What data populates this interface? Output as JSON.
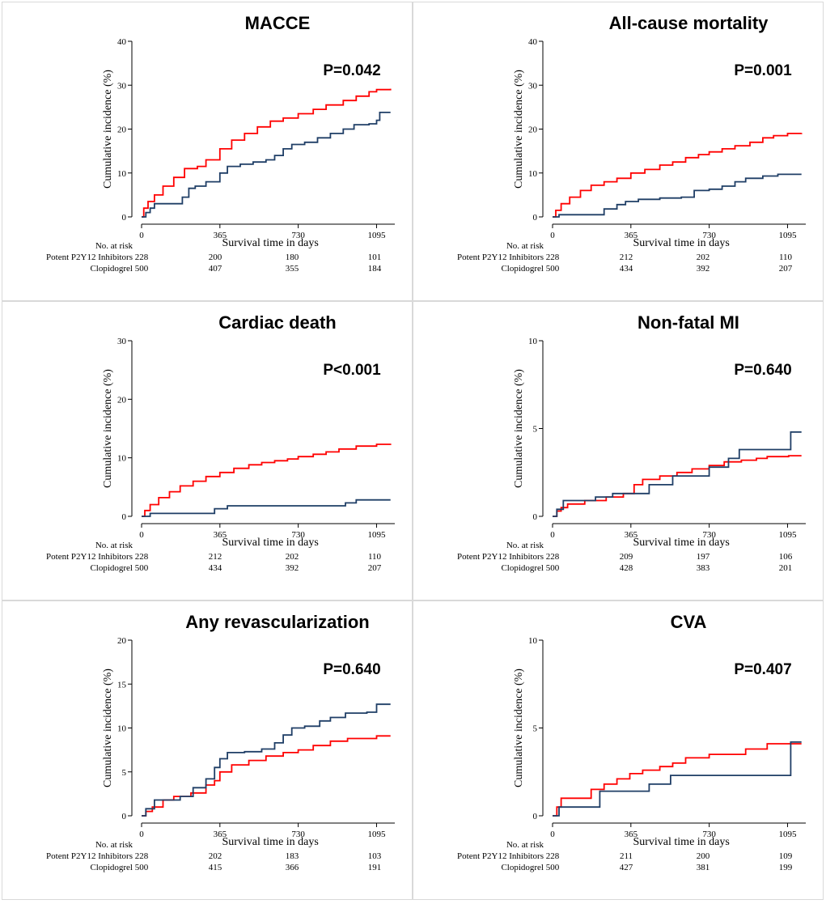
{
  "colors": {
    "potent": "#ff0000",
    "clopidogrel": "#1f3e66"
  },
  "chart_data": [
    {
      "type": "line",
      "title": "MACCE",
      "p_value": "P=0.042",
      "xlabel": "Survival time in days",
      "ylabel": "Cumulative incidence (%)",
      "x_ticks": [
        0,
        365,
        730,
        1095
      ],
      "x_tick_labels": [
        "0",
        "365",
        "730",
        "1095"
      ],
      "xlim": [
        0,
        1180
      ],
      "y_ticks": [
        0,
        10,
        20,
        30,
        40
      ],
      "y_tick_labels": [
        "0",
        "10",
        "20",
        "30",
        "40"
      ],
      "ylim": [
        0,
        40
      ],
      "series": [
        {
          "name": "Potent P2Y12 Inhibitors",
          "color": "#ff0000",
          "x": [
            0,
            10,
            30,
            60,
            100,
            150,
            200,
            230,
            260,
            300,
            365,
            420,
            480,
            540,
            600,
            660,
            730,
            800,
            860,
            940,
            1000,
            1060,
            1095,
            1160
          ],
          "y": [
            0,
            2,
            3.5,
            5,
            7,
            9,
            11,
            11,
            11.5,
            13,
            15.5,
            17.5,
            19,
            20.5,
            21.8,
            22.5,
            23.5,
            24.5,
            25.5,
            26.5,
            27.5,
            28.5,
            29,
            29.2
          ]
        },
        {
          "name": "Clopidogrel",
          "color": "#1f3e66",
          "x": [
            0,
            20,
            40,
            60,
            150,
            190,
            220,
            250,
            300,
            365,
            400,
            460,
            520,
            580,
            620,
            660,
            700,
            760,
            820,
            880,
            940,
            990,
            1060,
            1095,
            1110,
            1160
          ],
          "y": [
            0,
            1,
            2,
            3,
            3,
            4.5,
            6.5,
            7,
            8,
            10,
            11.5,
            12,
            12.5,
            13,
            14,
            15.5,
            16.5,
            17,
            18,
            19,
            20,
            21,
            21.2,
            22,
            23.8,
            23.8
          ]
        }
      ],
      "risk_table": {
        "header": "No. at risk",
        "rows": [
          {
            "label": "Potent P2Y12 Inhibitors",
            "values": [
              "228",
              "200",
              "180",
              "101"
            ]
          },
          {
            "label": "Clopidogrel",
            "values": [
              "500",
              "407",
              "355",
              "184"
            ]
          }
        ]
      }
    },
    {
      "type": "line",
      "title": "All-cause mortality",
      "p_value": "P=0.001",
      "xlabel": "Survival time in days",
      "ylabel": "Cumulative incidence (%)",
      "x_ticks": [
        0,
        365,
        730,
        1095
      ],
      "x_tick_labels": [
        "0",
        "365",
        "730",
        "1095"
      ],
      "xlim": [
        0,
        1180
      ],
      "y_ticks": [
        0,
        10,
        20,
        30,
        40
      ],
      "y_tick_labels": [
        "0",
        "10",
        "20",
        "30",
        "40"
      ],
      "ylim": [
        0,
        40
      ],
      "series": [
        {
          "name": "Potent P2Y12 Inhibitors",
          "color": "#ff0000",
          "x": [
            0,
            15,
            40,
            80,
            130,
            180,
            240,
            300,
            365,
            430,
            500,
            560,
            620,
            680,
            730,
            790,
            850,
            920,
            980,
            1030,
            1095,
            1160
          ],
          "y": [
            0,
            1.5,
            3,
            4.5,
            6,
            7.2,
            8,
            8.8,
            10,
            10.8,
            11.8,
            12.5,
            13.5,
            14.2,
            14.8,
            15.5,
            16.2,
            17,
            18,
            18.5,
            19,
            19.1
          ]
        },
        {
          "name": "Clopidogrel",
          "color": "#1f3e66",
          "x": [
            0,
            30,
            200,
            240,
            300,
            340,
            400,
            500,
            600,
            660,
            730,
            790,
            850,
            900,
            980,
            1050,
            1160
          ],
          "y": [
            0,
            0.5,
            0.5,
            1.8,
            2.8,
            3.5,
            4,
            4.3,
            4.5,
            6,
            6.3,
            7,
            8,
            8.8,
            9.3,
            9.7,
            9.7
          ]
        }
      ],
      "risk_table": {
        "header": "No. at risk",
        "rows": [
          {
            "label": "Potent P2Y12 Inhibitors",
            "values": [
              "228",
              "212",
              "202",
              "110"
            ]
          },
          {
            "label": "Clopidogrel",
            "values": [
              "500",
              "434",
              "392",
              "207"
            ]
          }
        ]
      }
    },
    {
      "type": "line",
      "title": "Cardiac death",
      "p_value": "P<0.001",
      "xlabel": "Survival time in days",
      "ylabel": "Cumulative incidence (%)",
      "x_ticks": [
        0,
        365,
        730,
        1095
      ],
      "x_tick_labels": [
        "0",
        "365",
        "730",
        "1095"
      ],
      "xlim": [
        0,
        1180
      ],
      "y_ticks": [
        0,
        10,
        20,
        30
      ],
      "y_tick_labels": [
        "0",
        "10",
        "20",
        "30"
      ],
      "ylim": [
        0,
        30
      ],
      "series": [
        {
          "name": "Potent P2Y12 Inhibitors",
          "color": "#ff0000",
          "x": [
            0,
            15,
            40,
            80,
            130,
            180,
            240,
            300,
            365,
            430,
            500,
            560,
            620,
            680,
            730,
            800,
            860,
            920,
            1000,
            1095,
            1160
          ],
          "y": [
            0,
            1,
            2,
            3.2,
            4.2,
            5.2,
            6,
            6.8,
            7.5,
            8.2,
            8.8,
            9.2,
            9.5,
            9.8,
            10.2,
            10.6,
            11,
            11.5,
            12,
            12.3,
            12.4
          ]
        },
        {
          "name": "Clopidogrel",
          "color": "#1f3e66",
          "x": [
            0,
            40,
            300,
            340,
            400,
            500,
            600,
            700,
            800,
            900,
            950,
            1000,
            1100,
            1160
          ],
          "y": [
            0,
            0.5,
            0.5,
            1.3,
            1.8,
            1.8,
            1.8,
            1.8,
            1.8,
            1.8,
            2.3,
            2.8,
            2.8,
            2.8
          ]
        }
      ],
      "risk_table": {
        "header": "No. at risk",
        "rows": [
          {
            "label": "Potent P2Y12 Inhibitors",
            "values": [
              "228",
              "212",
              "202",
              "110"
            ]
          },
          {
            "label": "Clopidogrel",
            "values": [
              "500",
              "434",
              "392",
              "207"
            ]
          }
        ]
      }
    },
    {
      "type": "line",
      "title": "Non-fatal MI",
      "p_value": "P=0.640",
      "xlabel": "Survival time in days",
      "ylabel": "Cumulative incidence (%)",
      "x_ticks": [
        0,
        365,
        730,
        1095
      ],
      "x_tick_labels": [
        "0",
        "365",
        "730",
        "1095"
      ],
      "xlim": [
        0,
        1180
      ],
      "y_ticks": [
        0,
        5,
        10
      ],
      "y_tick_labels": [
        "0",
        "5",
        "10"
      ],
      "ylim": [
        0,
        10
      ],
      "series": [
        {
          "name": "Potent P2Y12 Inhibitors",
          "color": "#ff0000",
          "x": [
            0,
            20,
            40,
            70,
            150,
            250,
            330,
            380,
            420,
            500,
            580,
            650,
            730,
            800,
            880,
            950,
            1000,
            1100,
            1160
          ],
          "y": [
            0,
            0.3,
            0.5,
            0.7,
            0.9,
            1.1,
            1.3,
            1.8,
            2.1,
            2.3,
            2.5,
            2.7,
            2.9,
            3.1,
            3.2,
            3.3,
            3.4,
            3.45,
            3.45
          ]
        },
        {
          "name": "Clopidogrel",
          "color": "#1f3e66",
          "x": [
            0,
            20,
            50,
            100,
            200,
            280,
            350,
            450,
            560,
            650,
            730,
            820,
            870,
            1000,
            1095,
            1110,
            1160
          ],
          "y": [
            0,
            0.4,
            0.9,
            0.9,
            1.1,
            1.3,
            1.3,
            1.8,
            2.3,
            2.3,
            2.8,
            3.3,
            3.8,
            3.8,
            3.8,
            4.8,
            4.8
          ]
        }
      ],
      "risk_table": {
        "header": "No. at risk",
        "rows": [
          {
            "label": "Potent P2Y12 Inhibitors",
            "values": [
              "228",
              "209",
              "197",
              "106"
            ]
          },
          {
            "label": "Clopidogrel",
            "values": [
              "500",
              "428",
              "383",
              "201"
            ]
          }
        ]
      }
    },
    {
      "type": "line",
      "title": "Any revascularization",
      "p_value": "P=0.640",
      "xlabel": "Survival time in days",
      "ylabel": "Cumulative incidence (%)",
      "x_ticks": [
        0,
        365,
        730,
        1095
      ],
      "x_tick_labels": [
        "0",
        "365",
        "730",
        "1095"
      ],
      "xlim": [
        0,
        1180
      ],
      "y_ticks": [
        0,
        5,
        10,
        15,
        20
      ],
      "y_tick_labels": [
        "0",
        "5",
        "10",
        "15",
        "20"
      ],
      "ylim": [
        0,
        20
      ],
      "series": [
        {
          "name": "Potent P2Y12 Inhibitors",
          "color": "#ff0000",
          "x": [
            0,
            20,
            50,
            100,
            150,
            230,
            300,
            340,
            365,
            420,
            500,
            580,
            660,
            730,
            800,
            880,
            960,
            1095,
            1160
          ],
          "y": [
            0,
            0.5,
            1,
            1.8,
            2.2,
            2.6,
            3.5,
            4,
            5,
            5.8,
            6.3,
            6.8,
            7.2,
            7.5,
            8,
            8.5,
            8.8,
            9.1,
            9.1
          ]
        },
        {
          "name": "Clopidogrel",
          "color": "#1f3e66",
          "x": [
            0,
            20,
            60,
            100,
            180,
            240,
            300,
            340,
            365,
            400,
            480,
            560,
            620,
            660,
            700,
            760,
            830,
            880,
            950,
            1050,
            1095,
            1160
          ],
          "y": [
            0,
            0.8,
            1.8,
            1.8,
            2.2,
            3.2,
            4.2,
            5.5,
            6.5,
            7.2,
            7.3,
            7.6,
            8.3,
            9.2,
            10,
            10.2,
            10.8,
            11.2,
            11.7,
            11.8,
            12.7,
            12.7
          ]
        }
      ],
      "risk_table": {
        "header": "No. at risk",
        "rows": [
          {
            "label": "Potent P2Y12 Inhibitors",
            "values": [
              "228",
              "202",
              "183",
              "103"
            ]
          },
          {
            "label": "Clopidogrel",
            "values": [
              "500",
              "415",
              "366",
              "191"
            ]
          }
        ]
      }
    },
    {
      "type": "line",
      "title": "CVA",
      "p_value": "P=0.407",
      "xlabel": "Survival time in days",
      "ylabel": "Cumulative incidence (%)",
      "x_ticks": [
        0,
        365,
        730,
        1095
      ],
      "x_tick_labels": [
        "0",
        "365",
        "730",
        "1095"
      ],
      "xlim": [
        0,
        1180
      ],
      "y_ticks": [
        0,
        5,
        10
      ],
      "y_tick_labels": [
        "0",
        "5",
        "10"
      ],
      "ylim": [
        0,
        10
      ],
      "series": [
        {
          "name": "Potent P2Y12 Inhibitors",
          "color": "#ff0000",
          "x": [
            0,
            20,
            40,
            100,
            180,
            240,
            300,
            360,
            420,
            500,
            560,
            620,
            730,
            800,
            900,
            1000,
            1095,
            1160
          ],
          "y": [
            0,
            0.5,
            1,
            1,
            1.5,
            1.8,
            2.1,
            2.4,
            2.6,
            2.8,
            3,
            3.3,
            3.5,
            3.5,
            3.8,
            4.1,
            4.1,
            4.1
          ]
        },
        {
          "name": "Clopidogrel",
          "color": "#1f3e66",
          "x": [
            0,
            30,
            200,
            220,
            400,
            450,
            550,
            650,
            800,
            900,
            1095,
            1110,
            1160
          ],
          "y": [
            0,
            0.5,
            0.5,
            1.4,
            1.4,
            1.8,
            2.3,
            2.3,
            2.3,
            2.3,
            2.3,
            4.2,
            4.2
          ]
        }
      ],
      "risk_table": {
        "header": "No. at risk",
        "rows": [
          {
            "label": "Potent P2Y12 Inhibitors",
            "values": [
              "228",
              "211",
              "200",
              "109"
            ]
          },
          {
            "label": "Clopidogrel",
            "values": [
              "500",
              "427",
              "381",
              "199"
            ]
          }
        ]
      }
    }
  ]
}
